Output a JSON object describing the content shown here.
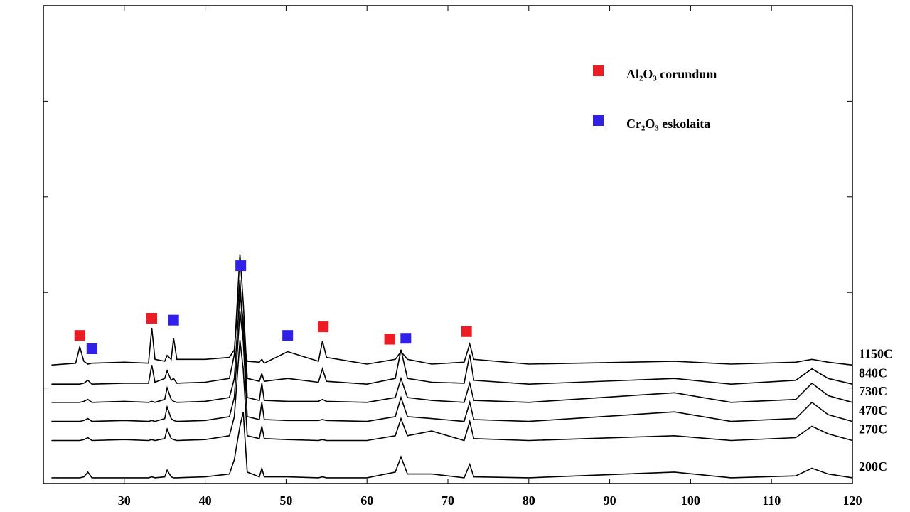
{
  "chart_data": {
    "type": "line",
    "xlim": [
      20,
      120
    ],
    "xticks": [
      30,
      40,
      50,
      60,
      70,
      80,
      90,
      100,
      110,
      120
    ],
    "ylim": [
      0,
      5
    ],
    "yticks": [
      1,
      2,
      3,
      4
    ],
    "x": [
      21,
      24,
      24.5,
      25,
      25.5,
      26,
      30,
      33,
      33.4,
      33.8,
      35,
      35.3,
      35.8,
      36.1,
      36.5,
      40,
      43,
      43.6,
      44.3,
      44.7,
      45.2,
      46.7,
      47,
      47.3,
      50.2,
      54,
      54.5,
      55,
      60,
      63.5,
      64.2,
      65,
      68,
      72,
      72.7,
      73.2,
      80,
      98,
      105,
      113,
      115,
      117,
      120
    ],
    "series": [
      {
        "name": "1150C",
        "color": "#000000",
        "values": [
          1.24,
          1.26,
          1.43,
          1.28,
          1.25,
          1.26,
          1.27,
          1.26,
          1.63,
          1.3,
          1.28,
          1.34,
          1.3,
          1.52,
          1.3,
          1.3,
          1.32,
          1.4,
          2.13,
          1.5,
          1.28,
          1.27,
          1.3,
          1.26,
          1.38,
          1.28,
          1.49,
          1.32,
          1.25,
          1.3,
          1.38,
          1.3,
          1.25,
          1.27,
          1.46,
          1.3,
          1.25,
          1.28,
          1.25,
          1.27,
          1.3,
          1.27,
          1.24
        ]
      },
      {
        "name": "840C",
        "color": "#000000",
        "values": [
          1.04,
          1.04,
          1.04,
          1.05,
          1.08,
          1.04,
          1.05,
          1.05,
          1.24,
          1.06,
          1.1,
          1.18,
          1.08,
          1.1,
          1.05,
          1.06,
          1.1,
          1.35,
          2.4,
          1.9,
          1.1,
          1.07,
          1.15,
          1.07,
          1.1,
          1.06,
          1.2,
          1.07,
          1.04,
          1.1,
          1.4,
          1.1,
          1.06,
          1.05,
          1.35,
          1.08,
          1.04,
          1.1,
          1.04,
          1.08,
          1.2,
          1.1,
          1.04
        ]
      },
      {
        "name": "730C",
        "color": "#000000",
        "values": [
          0.85,
          0.85,
          0.85,
          0.86,
          0.88,
          0.85,
          0.86,
          0.85,
          0.86,
          0.85,
          0.88,
          1.0,
          0.88,
          0.86,
          0.85,
          0.86,
          0.9,
          1.1,
          2.0,
          1.7,
          0.9,
          0.87,
          1.05,
          0.87,
          0.86,
          0.86,
          0.88,
          0.86,
          0.85,
          0.9,
          1.1,
          0.9,
          0.87,
          0.85,
          1.05,
          0.87,
          0.85,
          0.95,
          0.85,
          0.88,
          1.05,
          0.92,
          0.85
        ]
      },
      {
        "name": "470C",
        "color": "#000000",
        "values": [
          0.65,
          0.65,
          0.65,
          0.66,
          0.68,
          0.65,
          0.66,
          0.65,
          0.66,
          0.65,
          0.68,
          0.8,
          0.68,
          0.66,
          0.65,
          0.66,
          0.7,
          0.9,
          1.8,
          1.5,
          0.7,
          0.67,
          0.85,
          0.67,
          0.66,
          0.66,
          0.67,
          0.66,
          0.65,
          0.7,
          0.9,
          0.7,
          0.68,
          0.65,
          0.85,
          0.67,
          0.65,
          0.75,
          0.65,
          0.68,
          0.85,
          0.72,
          0.65
        ]
      },
      {
        "name": "270C",
        "color": "#000000",
        "values": [
          0.45,
          0.45,
          0.45,
          0.46,
          0.48,
          0.45,
          0.46,
          0.45,
          0.46,
          0.45,
          0.47,
          0.57,
          0.47,
          0.46,
          0.45,
          0.46,
          0.5,
          0.7,
          1.5,
          1.2,
          0.5,
          0.47,
          0.6,
          0.47,
          0.46,
          0.45,
          0.46,
          0.45,
          0.45,
          0.5,
          0.68,
          0.5,
          0.55,
          0.45,
          0.65,
          0.47,
          0.45,
          0.5,
          0.45,
          0.48,
          0.6,
          0.52,
          0.45
        ]
      },
      {
        "name": "200C",
        "color": "#000000",
        "values": [
          0.06,
          0.06,
          0.06,
          0.07,
          0.12,
          0.06,
          0.06,
          0.06,
          0.07,
          0.06,
          0.07,
          0.14,
          0.07,
          0.06,
          0.06,
          0.07,
          0.1,
          0.25,
          0.6,
          0.75,
          0.12,
          0.07,
          0.16,
          0.07,
          0.07,
          0.06,
          0.07,
          0.06,
          0.06,
          0.12,
          0.28,
          0.1,
          0.1,
          0.06,
          0.2,
          0.07,
          0.06,
          0.12,
          0.06,
          0.08,
          0.16,
          0.1,
          0.06
        ]
      }
    ],
    "phases": [
      {
        "name": "Al₂O₃ corundum",
        "color": "#ec1c24",
        "x": [
          24.5,
          33.4,
          54.6,
          62.8,
          72.3
        ],
        "y": [
          1.55,
          1.73,
          1.64,
          1.51,
          1.59
        ]
      },
      {
        "name": "Cr₂O₃ eskolaita",
        "color": "#3020e8",
        "x": [
          26,
          36.1,
          44.4,
          50.2,
          64.8
        ],
        "y": [
          1.41,
          1.71,
          2.28,
          1.55,
          1.52
        ]
      }
    ]
  }
}
